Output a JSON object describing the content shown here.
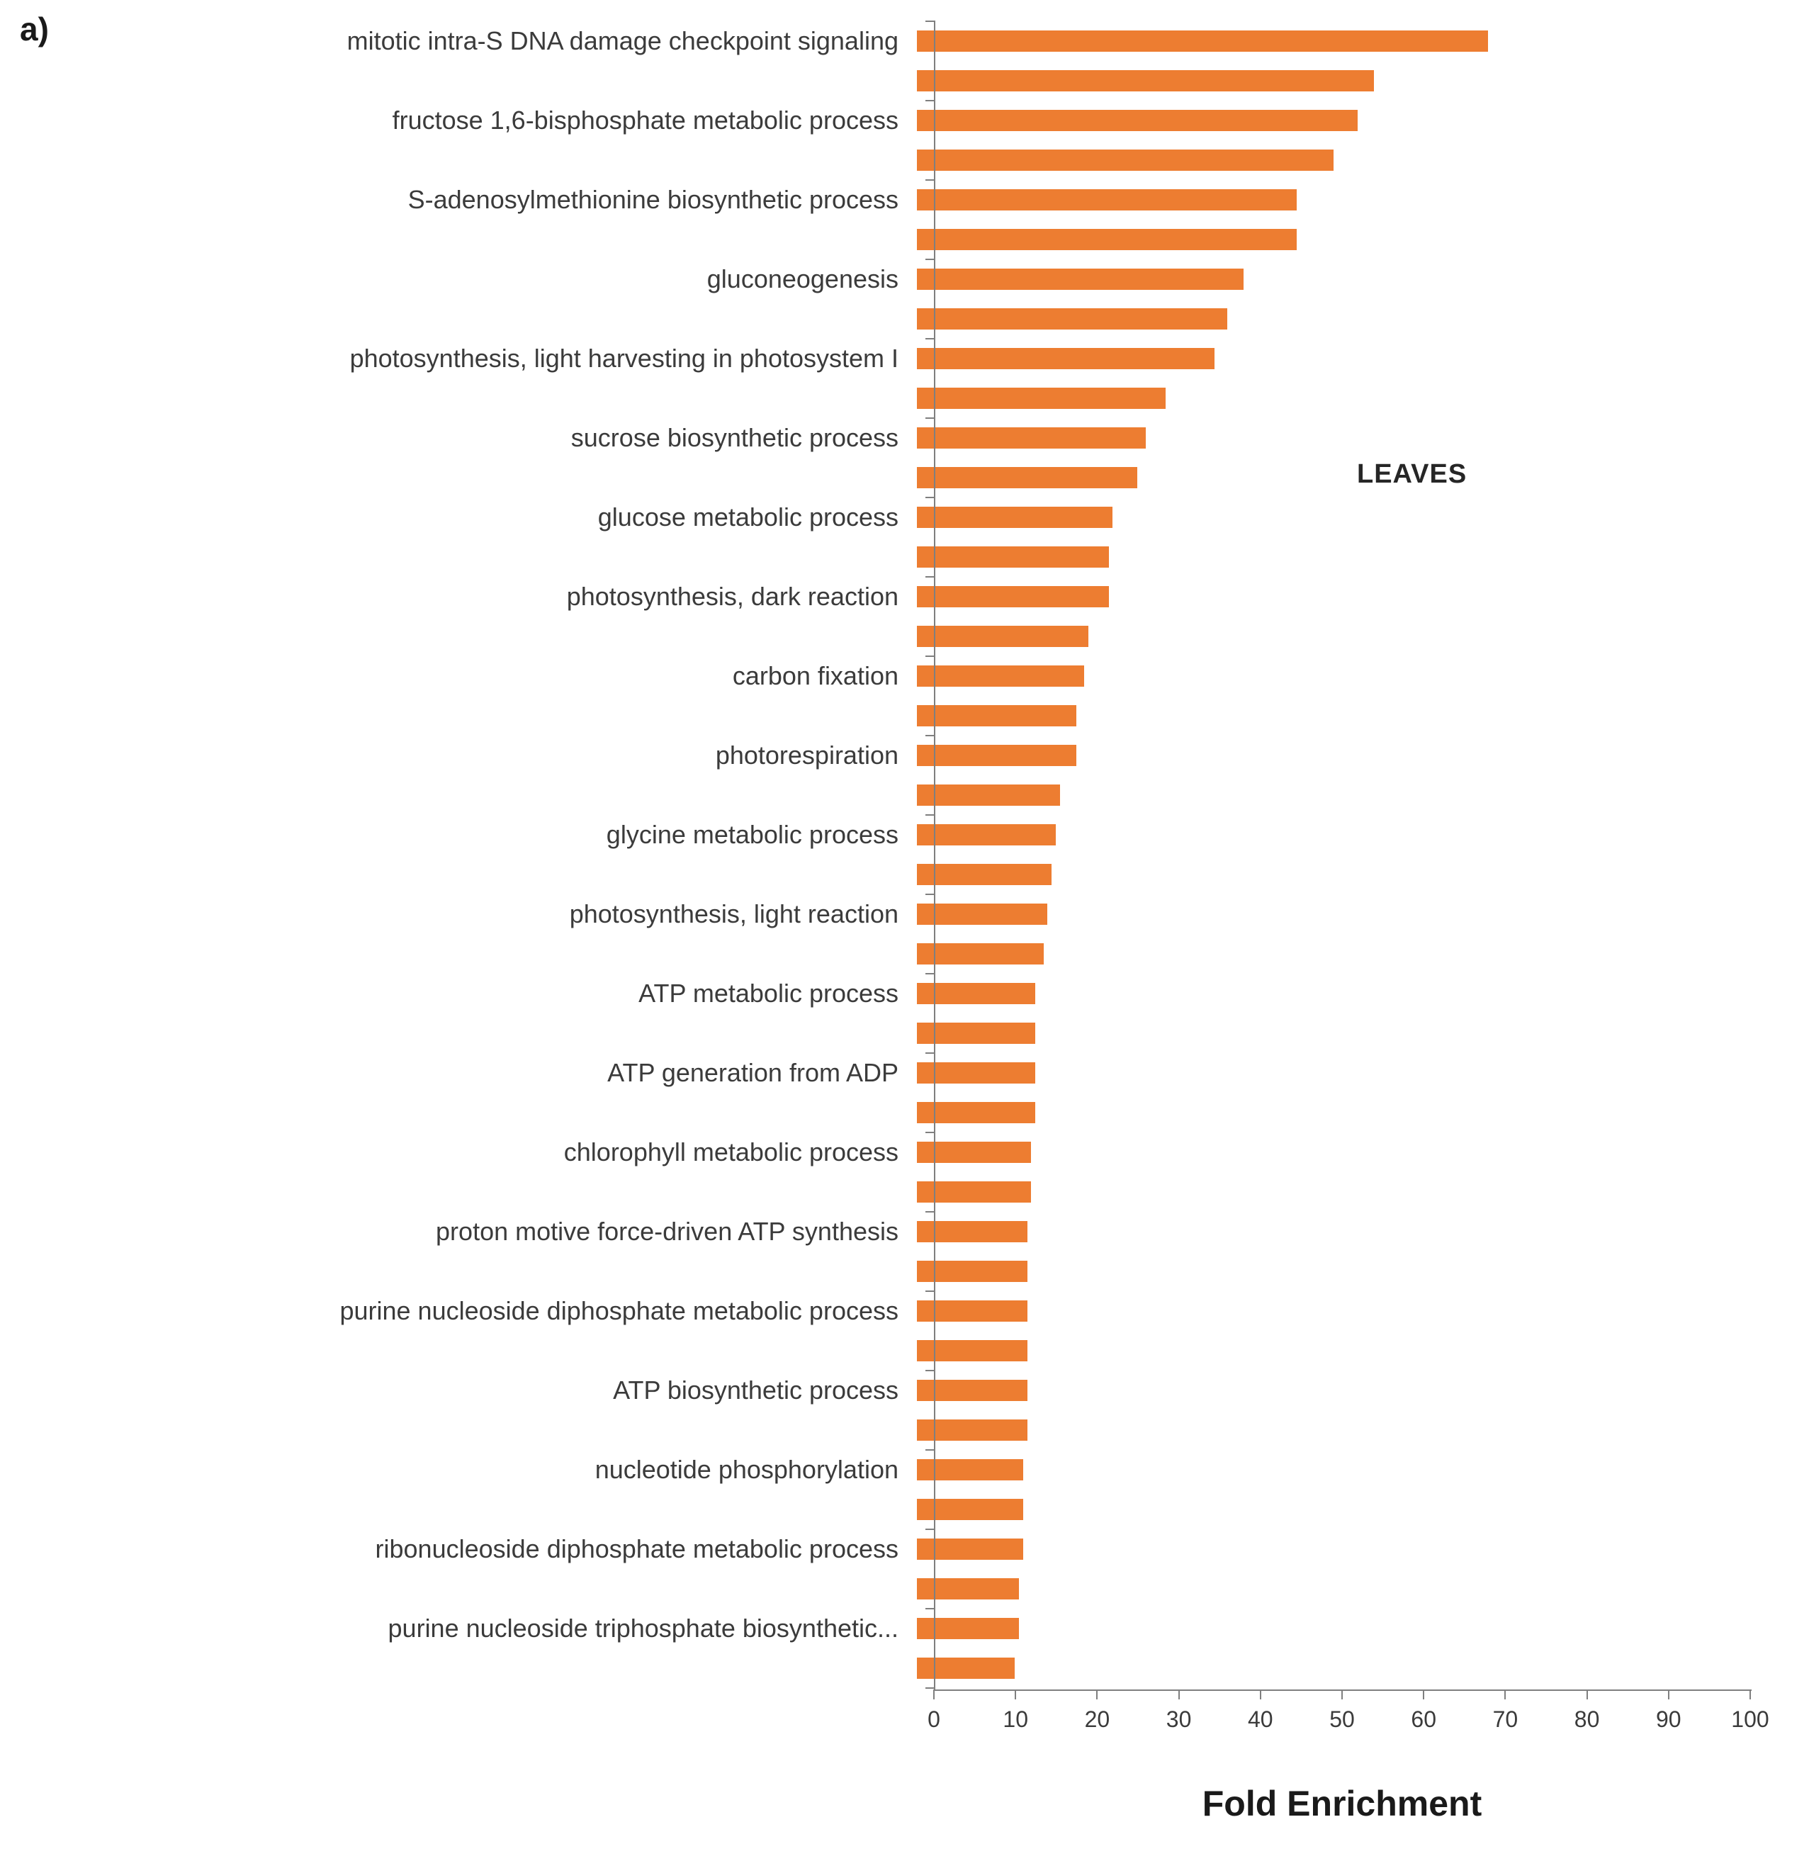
{
  "panel_label": "a)",
  "chart_data": {
    "type": "bar",
    "orientation": "horizontal",
    "annotation": "LEAVES",
    "xlabel": "Fold Enrichment",
    "xlim": [
      0,
      100
    ],
    "xticks": [
      0,
      10,
      20,
      30,
      40,
      50,
      60,
      70,
      80,
      90,
      100
    ],
    "bar_color": "#ED7D31",
    "grid": false,
    "legend": "none",
    "categories": [
      "mitotic intra-S DNA damage checkpoint signaling",
      "",
      "fructose 1,6-bisphosphate metabolic process",
      "",
      "S-adenosylmethionine biosynthetic process",
      "",
      "gluconeogenesis",
      "",
      "photosynthesis, light harvesting in photosystem I",
      "",
      "sucrose biosynthetic process",
      "",
      "glucose metabolic process",
      "",
      "photosynthesis, dark reaction",
      "",
      "carbon fixation",
      "",
      "photorespiration",
      "",
      "glycine metabolic process",
      "",
      "photosynthesis, light reaction",
      "",
      "ATP metabolic process",
      "",
      "ATP generation from ADP",
      "",
      "chlorophyll metabolic process",
      "",
      "proton motive force-driven ATP synthesis",
      "",
      "purine nucleoside diphosphate metabolic process",
      "",
      "ATP biosynthetic process",
      "",
      "nucleotide phosphorylation",
      "",
      "ribonucleoside diphosphate metabolic process",
      "",
      "purine nucleoside triphosphate biosynthetic...",
      ""
    ],
    "values": [
      70,
      56,
      54,
      51,
      46.5,
      46.5,
      40,
      38,
      36.5,
      30.5,
      28,
      27,
      24,
      23.5,
      23.5,
      21,
      20.5,
      19.5,
      19.5,
      17.5,
      17,
      16.5,
      16,
      15.5,
      14.5,
      14.5,
      14.5,
      14.5,
      14,
      14,
      13.5,
      13.5,
      13.5,
      13.5,
      13.5,
      13.5,
      13,
      13,
      13,
      12.5,
      12.5,
      12
    ]
  }
}
